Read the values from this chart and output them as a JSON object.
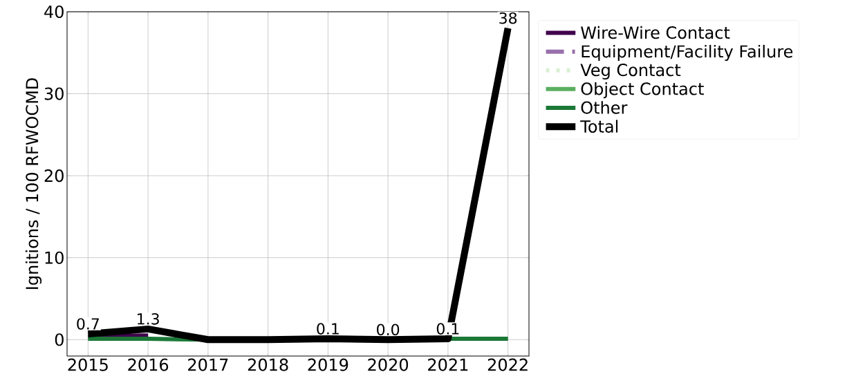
{
  "chart_data": {
    "type": "line",
    "ylabel": "Ignitions / 100 RFWOCMD",
    "x": [
      2015,
      2016,
      2017,
      2018,
      2019,
      2020,
      2021,
      2022
    ],
    "series": [
      {
        "name": "Wire-Wire Contact",
        "color": "#40004b",
        "line_style": "solid",
        "values": [
          0.4,
          0.5,
          null,
          null,
          null,
          null,
          null,
          null
        ]
      },
      {
        "name": "Equipment/Facility Failure",
        "color": "#9970ab",
        "line_style": "dashdot",
        "values": [
          null,
          null,
          null,
          null,
          null,
          null,
          null,
          null
        ]
      },
      {
        "name": "Veg Contact",
        "color": "#d9f0d3",
        "line_style": "dotted",
        "values": [
          null,
          null,
          null,
          null,
          null,
          null,
          null,
          null
        ]
      },
      {
        "name": "Object Contact",
        "color": "#5aae61",
        "line_style": "solid",
        "values": [
          null,
          null,
          null,
          null,
          null,
          null,
          null,
          null
        ]
      },
      {
        "name": "Other",
        "color": "#1b7837",
        "line_style": "solid",
        "values": [
          0.1,
          0.1,
          0,
          null,
          null,
          null,
          0.1,
          0.1
        ]
      },
      {
        "name": "Total",
        "color": "#000000",
        "line_style": "solid",
        "values": [
          0.7,
          1.3,
          0,
          0,
          0.1,
          0.0,
          0.1,
          38
        ],
        "value_labels": [
          "0.7",
          "1.3",
          null,
          null,
          "0.1",
          "0.0",
          "0.1",
          "38"
        ]
      }
    ],
    "xlim": [
      2014.65,
      2022.35
    ],
    "ylim": [
      -2,
      40
    ],
    "xticks": [
      2015,
      2016,
      2017,
      2018,
      2019,
      2020,
      2021,
      2022
    ],
    "yticks": [
      0,
      10,
      20,
      30,
      40
    ],
    "grid": true,
    "legend": "right",
    "marker": "none"
  }
}
